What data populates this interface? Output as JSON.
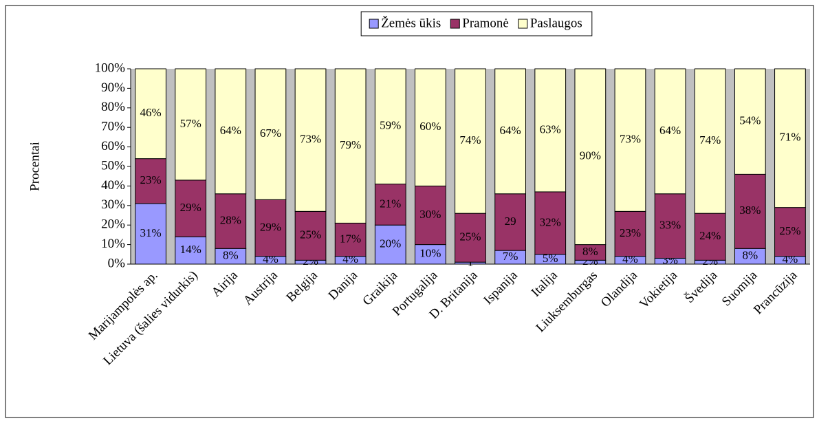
{
  "chart_data": {
    "type": "stacked_bar_100",
    "y_label": "Procentai",
    "legend": "top",
    "categories": [
      "Marijampolės ap.",
      "Lietuva (šalies vidurkis)",
      "Airija",
      "Austrija",
      "Belgija",
      "Danija",
      "Graikija",
      "Portugalija",
      "D. Britanija",
      "Ispanija",
      "Italija",
      "Liuksemburgas",
      "Olandija",
      "Vokietija",
      "Švedija",
      "Suomija",
      "Prancūzija"
    ],
    "series": [
      {
        "name": "Žemės ūkis",
        "color": "#9999ff",
        "values": [
          31,
          14,
          8,
          4,
          2,
          4,
          20,
          10,
          1,
          7,
          5,
          2,
          4,
          3,
          2,
          8,
          4
        ],
        "value_labels": [
          "31%",
          "14%",
          "8%",
          "4%",
          "2%",
          "4%",
          "20%",
          "10%",
          "1",
          "7%",
          "5%",
          "2%",
          "4%",
          "3%",
          "2%",
          "8%",
          "4%"
        ]
      },
      {
        "name": "Pramonė",
        "color": "#993366",
        "values": [
          23,
          29,
          28,
          29,
          25,
          17,
          21,
          30,
          25,
          29,
          32,
          8,
          23,
          33,
          24,
          38,
          25
        ],
        "value_labels": [
          "23%",
          "29%",
          "28%",
          "29%",
          "25%",
          "17%",
          "21%",
          "30%",
          "25%",
          "29",
          "32%",
          "8%",
          "23%",
          "33%",
          "24%",
          "38%",
          "25%"
        ]
      },
      {
        "name": "Paslaugos",
        "color": "#ffffcc",
        "values": [
          46,
          57,
          64,
          67,
          73,
          79,
          59,
          60,
          74,
          64,
          63,
          90,
          73,
          64,
          74,
          54,
          71
        ],
        "value_labels": [
          "46%",
          "57%",
          "64%",
          "67%",
          "73%",
          "79%",
          "59%",
          "60%",
          "74%",
          "64%",
          "63%",
          "90%",
          "73%",
          "64%",
          "74%",
          "54%",
          "71%"
        ]
      }
    ],
    "ylim": [
      0,
      100
    ],
    "yticks": [
      {
        "value": 0,
        "label": "0%"
      },
      {
        "value": 10,
        "label": "10%"
      },
      {
        "value": 20,
        "label": "20%"
      },
      {
        "value": 30,
        "label": "30%"
      },
      {
        "value": 40,
        "label": "40%"
      },
      {
        "value": 50,
        "label": "50%"
      },
      {
        "value": 60,
        "label": "60%"
      },
      {
        "value": 70,
        "label": "70%"
      },
      {
        "value": 80,
        "label": "80%"
      },
      {
        "value": 90,
        "label": "90%"
      },
      {
        "value": 100,
        "label": "100%"
      }
    ]
  }
}
